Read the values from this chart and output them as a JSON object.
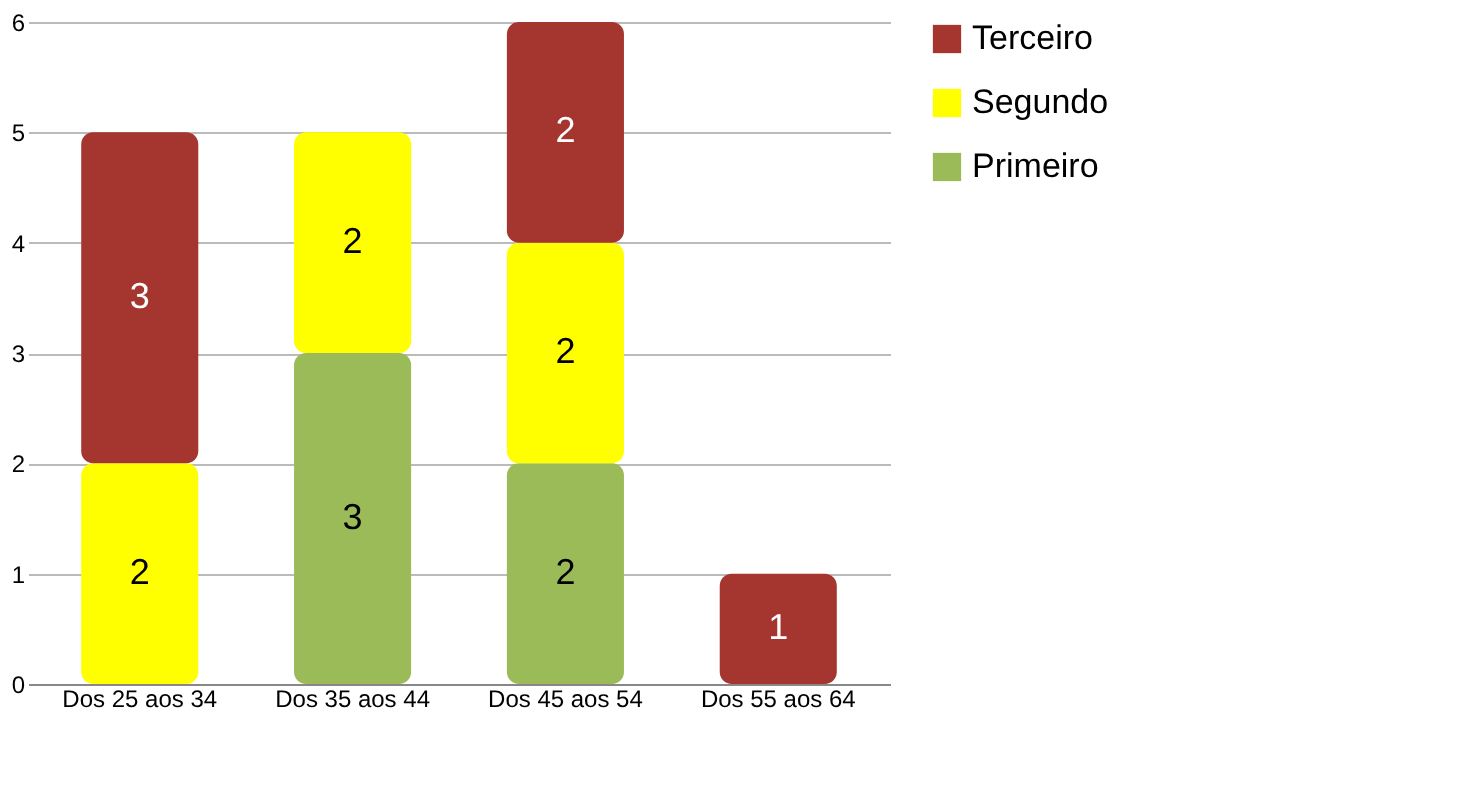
{
  "chart_data": {
    "type": "bar",
    "stacked": true,
    "categories": [
      "Dos 25 aos 34",
      "Dos 35 aos 44",
      "Dos 45 aos 54",
      "Dos 55 aos 64"
    ],
    "series": [
      {
        "name": "Primeiro",
        "color": "#9bbb59",
        "values": [
          null,
          3,
          2,
          null
        ]
      },
      {
        "name": "Segundo",
        "color": "#ffff00",
        "values": [
          2,
          2,
          2,
          null
        ]
      },
      {
        "name": "Terceiro",
        "color": "#a5352f",
        "values": [
          3,
          null,
          2,
          1
        ]
      }
    ],
    "ylim": [
      0,
      6
    ],
    "yticks": [
      0,
      1,
      2,
      3,
      4,
      5,
      6
    ],
    "grid": "y",
    "legend": "right",
    "data_labels": true
  }
}
